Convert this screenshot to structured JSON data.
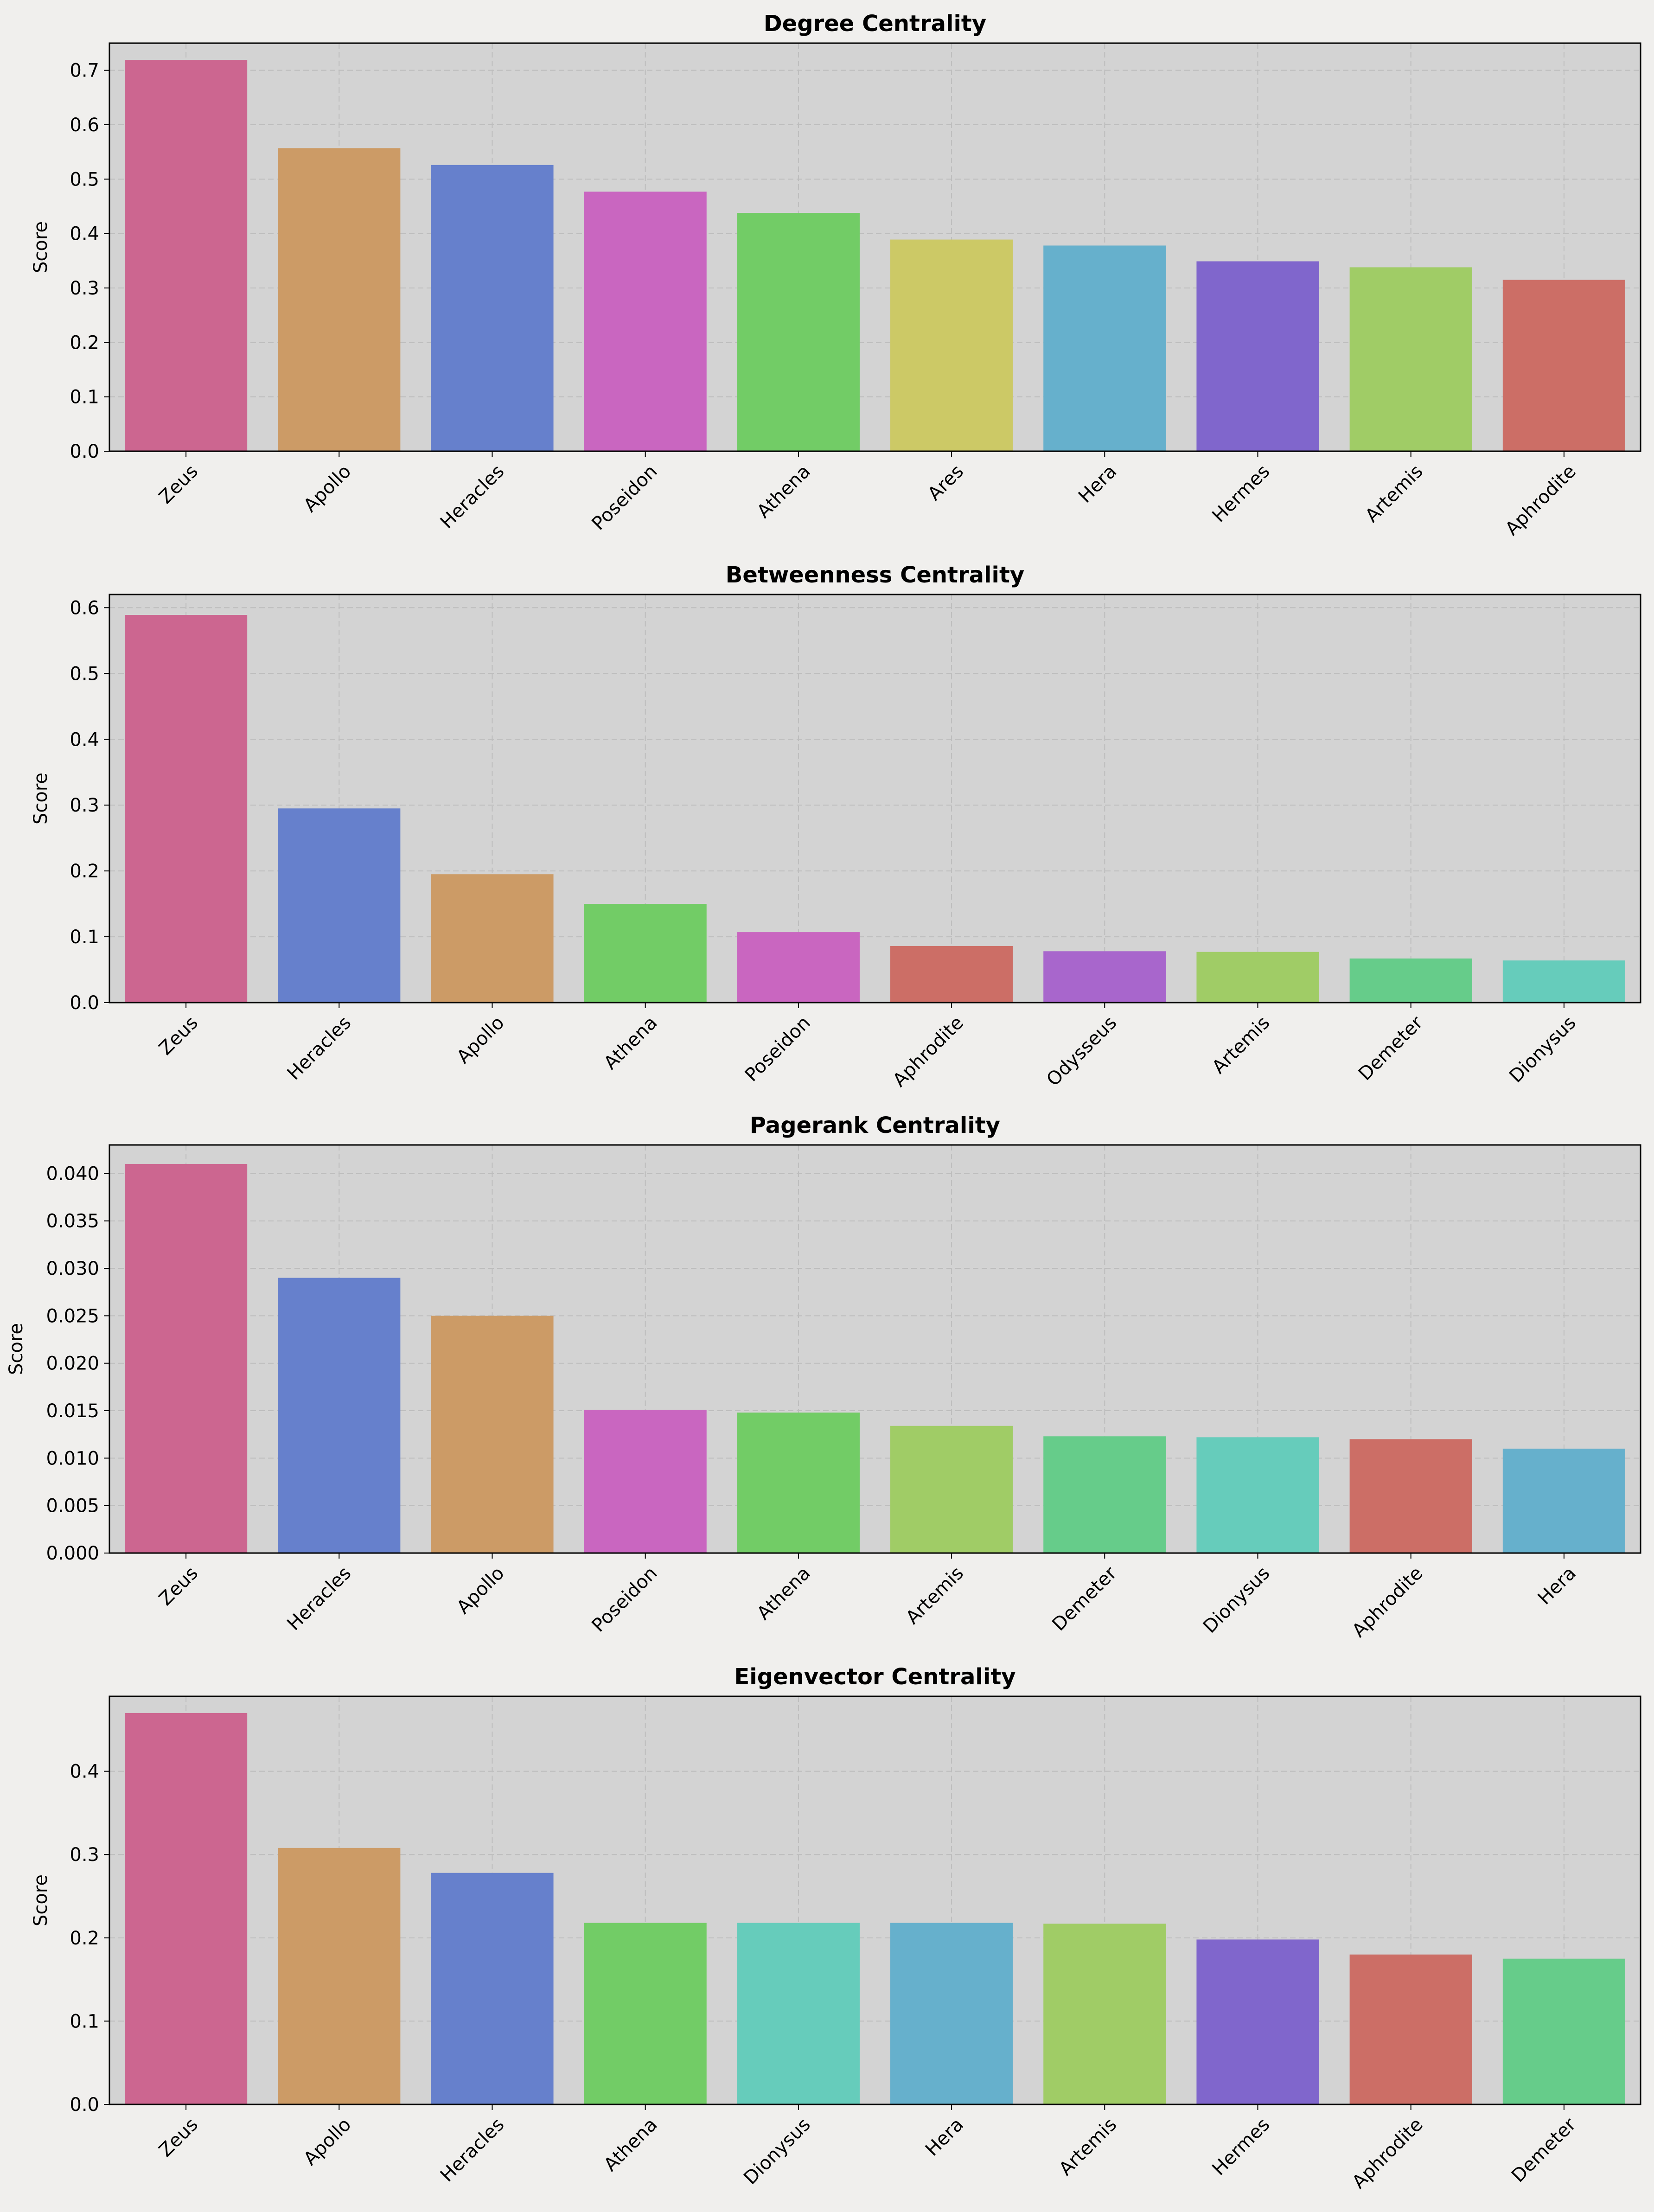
{
  "chart_data": [
    {
      "type": "bar",
      "title": "Degree Centrality",
      "xlabel": "",
      "ylabel": "Score",
      "ylim": [
        0,
        0.75
      ],
      "yticks": [
        "0.0",
        "0.1",
        "0.2",
        "0.3",
        "0.4",
        "0.5",
        "0.6",
        "0.7"
      ],
      "grid": true,
      "categories": [
        "Zeus",
        "Apollo",
        "Heracles",
        "Poseidon",
        "Athena",
        "Ares",
        "Hera",
        "Hermes",
        "Artemis",
        "Aphrodite"
      ],
      "values": [
        0.719,
        0.557,
        0.526,
        0.477,
        0.438,
        0.389,
        0.378,
        0.349,
        0.338,
        0.315
      ],
      "colors": [
        "#cc6690",
        "#cc9b66",
        "#6680cc",
        "#c966c0",
        "#72cc66",
        "#ccc966",
        "#66b0cc",
        "#8066cc",
        "#a0cc66",
        "#cc6e66"
      ]
    },
    {
      "type": "bar",
      "title": "Betweenness Centrality",
      "xlabel": "",
      "ylabel": "Score",
      "ylim": [
        0,
        0.62
      ],
      "yticks": [
        "0.0",
        "0.1",
        "0.2",
        "0.3",
        "0.4",
        "0.5",
        "0.6"
      ],
      "grid": true,
      "categories": [
        "Zeus",
        "Heracles",
        "Apollo",
        "Athena",
        "Poseidon",
        "Aphrodite",
        "Odysseus",
        "Artemis",
        "Demeter",
        "Dionysus"
      ],
      "values": [
        0.589,
        0.295,
        0.195,
        0.15,
        0.107,
        0.086,
        0.078,
        0.077,
        0.067,
        0.064
      ],
      "colors": [
        "#cc6690",
        "#6680cc",
        "#cc9b66",
        "#72cc66",
        "#c966c0",
        "#cc6e66",
        "#a866cc",
        "#a0cc66",
        "#66cc8a",
        "#66ccbb"
      ]
    },
    {
      "type": "bar",
      "title": "Pagerank Centrality",
      "xlabel": "",
      "ylabel": "Score",
      "ylim": [
        0,
        0.043
      ],
      "yticks": [
        "0.000",
        "0.005",
        "0.010",
        "0.015",
        "0.020",
        "0.025",
        "0.030",
        "0.035",
        "0.040"
      ],
      "grid": true,
      "categories": [
        "Zeus",
        "Heracles",
        "Apollo",
        "Poseidon",
        "Athena",
        "Artemis",
        "Demeter",
        "Dionysus",
        "Aphrodite",
        "Hera"
      ],
      "values": [
        0.041,
        0.029,
        0.025,
        0.0151,
        0.0148,
        0.0134,
        0.0123,
        0.0122,
        0.012,
        0.011
      ],
      "colors": [
        "#cc6690",
        "#6680cc",
        "#cc9b66",
        "#c966c0",
        "#72cc66",
        "#a0cc66",
        "#66cc8a",
        "#66ccbb",
        "#cc6e66",
        "#66b0cc"
      ]
    },
    {
      "type": "bar",
      "title": "Eigenvector Centrality",
      "xlabel": "",
      "ylabel": "Score",
      "ylim": [
        0,
        0.49
      ],
      "yticks": [
        "0.0",
        "0.1",
        "0.2",
        "0.3",
        "0.4"
      ],
      "grid": true,
      "categories": [
        "Zeus",
        "Apollo",
        "Heracles",
        "Athena",
        "Dionysus",
        "Hera",
        "Artemis",
        "Hermes",
        "Aphrodite",
        "Demeter"
      ],
      "values": [
        0.47,
        0.308,
        0.278,
        0.218,
        0.218,
        0.218,
        0.217,
        0.198,
        0.18,
        0.175
      ],
      "colors": [
        "#cc6690",
        "#cc9b66",
        "#6680cc",
        "#72cc66",
        "#66ccbb",
        "#66b0cc",
        "#a0cc66",
        "#8066cc",
        "#cc6e66",
        "#66cc8a"
      ]
    }
  ]
}
